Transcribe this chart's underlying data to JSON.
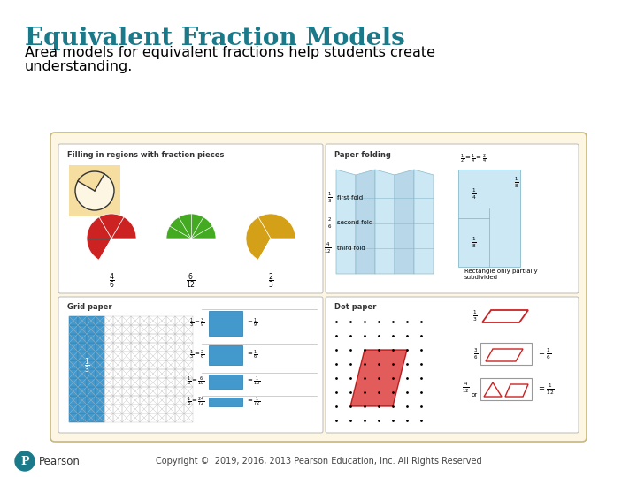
{
  "title": "Equivalent Fraction Models",
  "subtitle_line1": "Area models for equivalent fractions help students create",
  "subtitle_line2": "understanding.",
  "title_color": "#1a7a8a",
  "subtitle_color": "#000000",
  "background_color": "#ffffff",
  "box_bg_color": "#fdf6e3",
  "box_border_color": "#c8b87a",
  "copyright_text": "Copyright ©  2019, 2016, 2013 Pearson Education, Inc. All Rights Reserved",
  "pearson_color": "#1a7a8a"
}
